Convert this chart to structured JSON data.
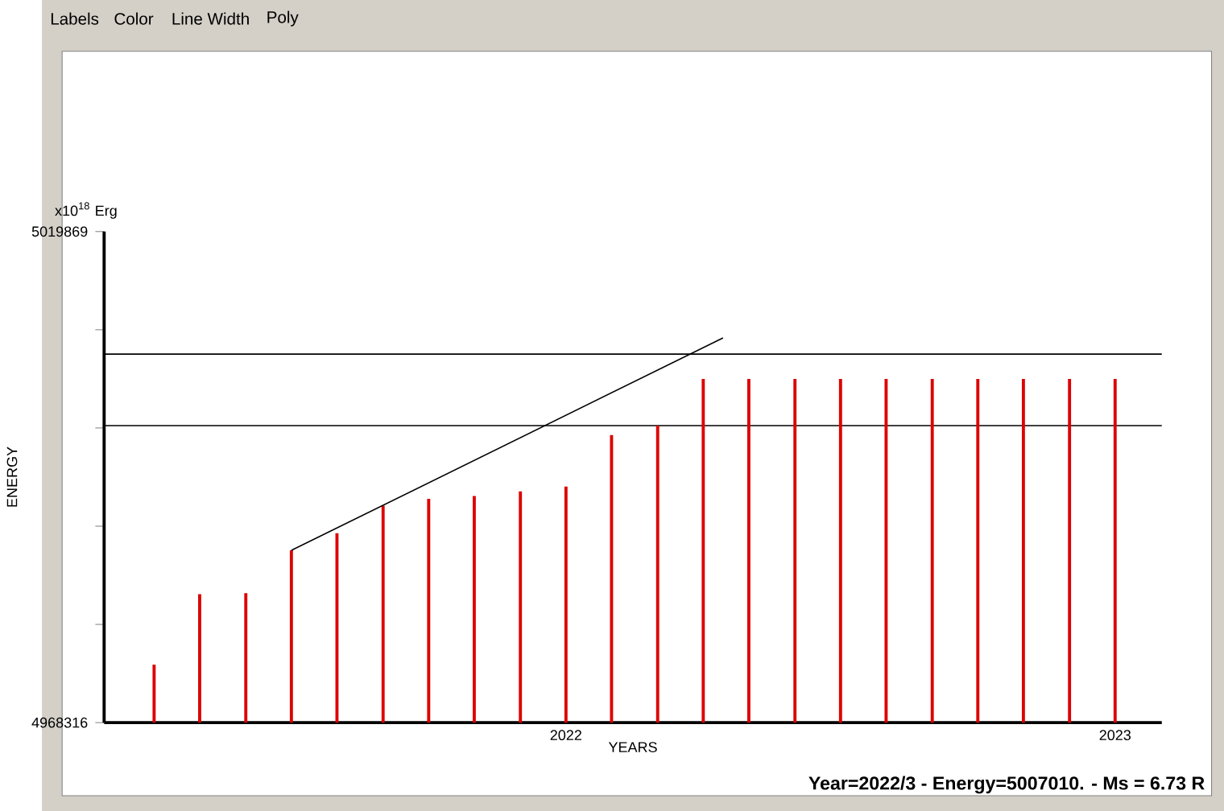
{
  "chart_data": {
    "type": "bar",
    "xlabel": "YEARS",
    "ylabel": "ENERGY",
    "x": [
      2021.25,
      2021.333,
      2021.417,
      2021.5,
      2021.583,
      2021.667,
      2021.75,
      2021.833,
      2021.917,
      2022,
      2022.083,
      2022.167,
      2022.25,
      2022.333,
      2022.417,
      2022.5,
      2022.583,
      2022.667,
      2022.75,
      2022.833,
      2022.917,
      2023
    ],
    "series": [
      {
        "color": "#dd0000",
        "values": [
          4974400,
          4981800,
          4981900,
          4986400,
          4988200,
          4991100,
          4991800,
          4992100,
          4992600,
          4993100,
          4998500,
          4999500,
          5004400,
          5004400,
          5004400,
          5004400,
          5004400,
          5004400,
          5004400,
          5004400,
          5004400,
          5004400
        ]
      },
      {
        "type": "line",
        "color": "#000000",
        "x": [
          2021.5,
          2022.286
        ],
        "values": [
          4986400,
          5008700
        ]
      }
    ],
    "xlim": [
      2021.159,
      2023.085
    ],
    "xticks": [
      2022,
      2023
    ],
    "ylim": [
      4968316,
      5019869
    ],
    "yticks": [
      4968316,
      {
        "value": 4978627,
        "label": null
      },
      {
        "value": 4988937,
        "label": null
      },
      {
        "value": 4999248,
        "label": null
      },
      {
        "value": 5009558,
        "label": null
      },
      5019869
    ],
    "ref_lines": [
      {
        "axis": "y",
        "value": 5007000,
        "color": "#000000"
      },
      {
        "axis": "y",
        "value": 4999500,
        "color": "#000000"
      }
    ],
    "annotations": [
      "Labels",
      "Color",
      "Line Width",
      "Poly",
      "x10$^{18}$ Erg",
      "Year=2022/3 - Energy=5007010. - Ms = 6.73 R"
    ]
  }
}
